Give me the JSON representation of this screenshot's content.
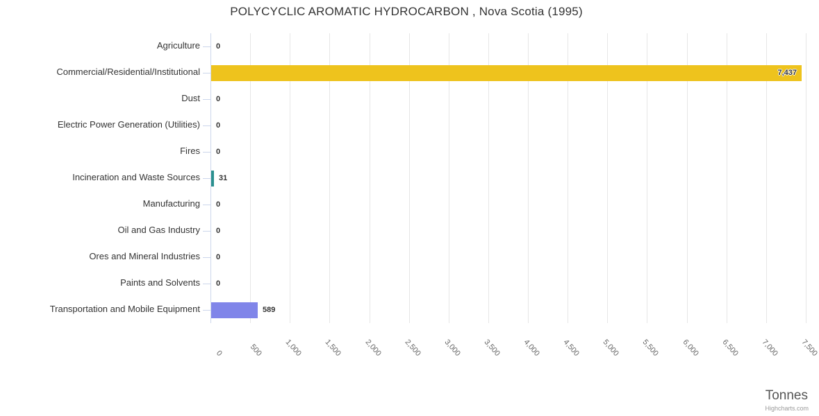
{
  "chart_data": {
    "type": "bar",
    "title": "POLYCYCLIC AROMATIC HYDROCARBON , Nova Scotia (1995)",
    "xlabel": "Tonnes",
    "ylabel": "",
    "legend": "none",
    "grid": true,
    "categories": [
      "Agriculture",
      "Commercial/Residential/Institutional",
      "Dust",
      "Electric Power Generation (Utilities)",
      "Fires",
      "Incineration and Waste Sources",
      "Manufacturing",
      "Oil and Gas Industry",
      "Ores and Mineral Industries",
      "Paints and Solvents",
      "Transportation and Mobile Equipment"
    ],
    "values": [
      0,
      7437,
      0,
      0,
      0,
      31,
      0,
      0,
      0,
      0,
      589
    ],
    "value_labels": [
      "0",
      "7,437",
      "0",
      "0",
      "0",
      "31",
      "0",
      "0",
      "0",
      "0",
      "589"
    ],
    "bar_colors": [
      null,
      "#eec31d",
      null,
      null,
      null,
      "#2b908f",
      null,
      null,
      null,
      null,
      "#8085e9"
    ],
    "axis": {
      "min": 0,
      "max": 7500,
      "tick_interval": 500,
      "tick_labels": [
        "0",
        "500",
        "1,000",
        "1,500",
        "2,000",
        "2,500",
        "3,000",
        "3,500",
        "4,000",
        "4,500",
        "5,000",
        "5,500",
        "6,000",
        "6,500",
        "7,000",
        "7,500"
      ]
    },
    "colors": {
      "grid": "#e6e6e6",
      "axis_line": "#ccd6eb",
      "category_label": "#333333",
      "tick_label": "#666666",
      "axis_title": "#555555",
      "data_label": "#333333",
      "title": "#333333",
      "credit": "#999999"
    }
  },
  "credit": {
    "label": "Highcharts.com"
  }
}
